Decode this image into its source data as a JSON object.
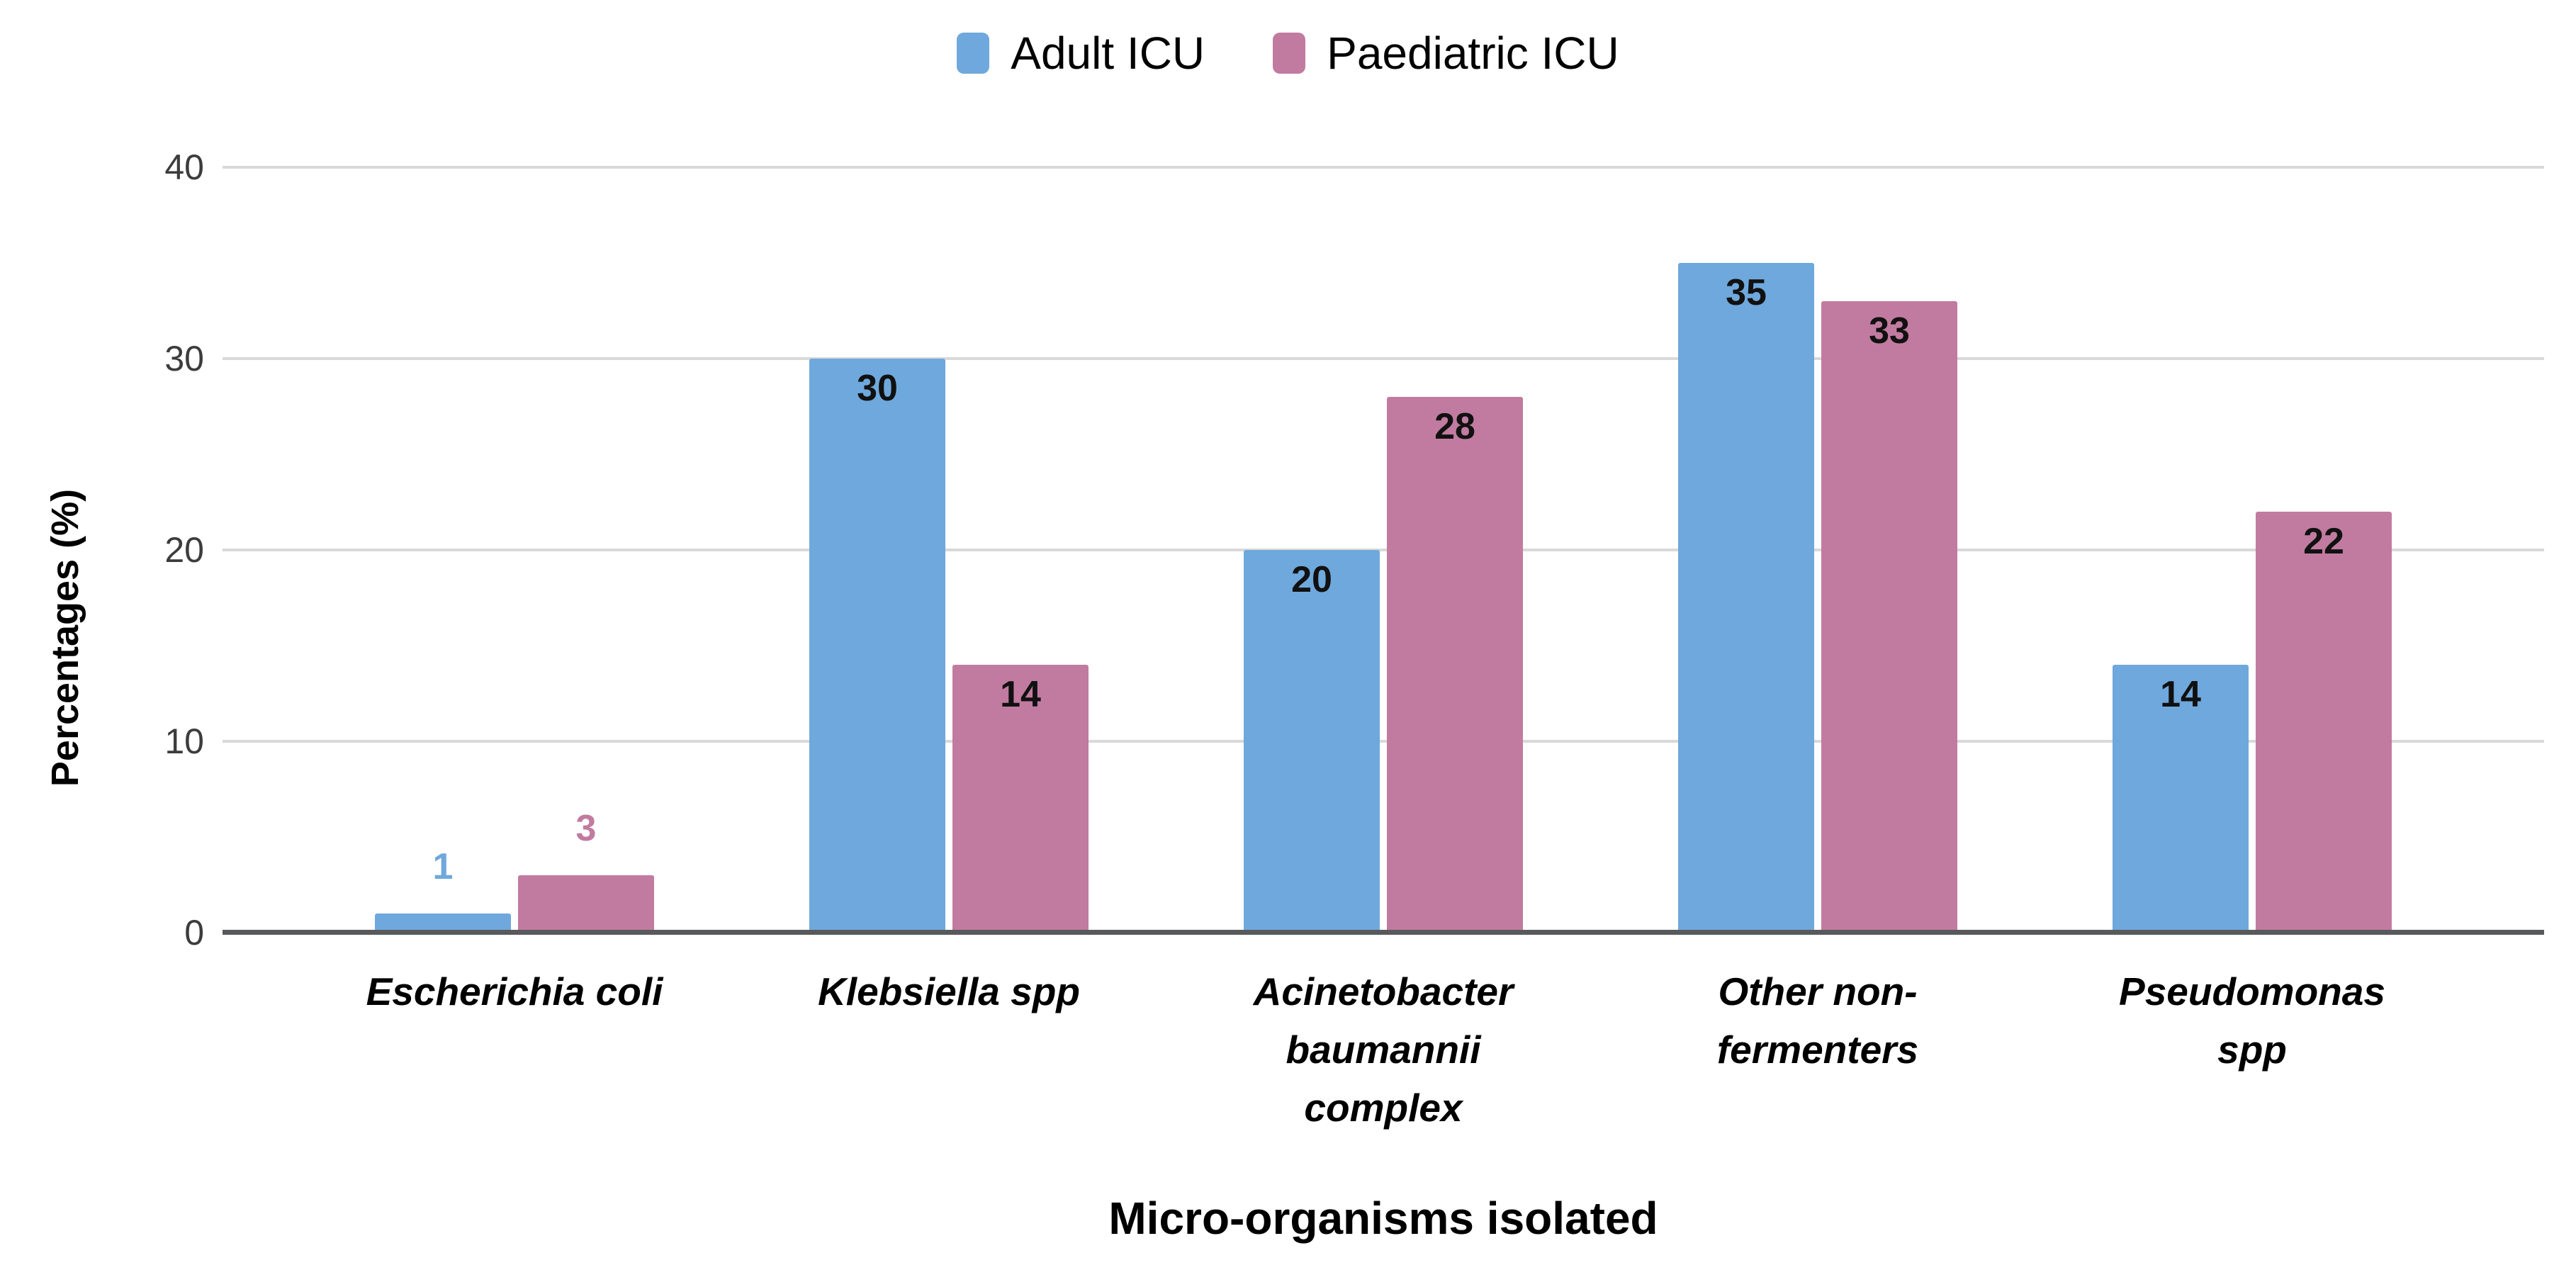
{
  "chart_data": {
    "type": "bar",
    "title": "",
    "xlabel": "Micro-organisms isolated",
    "ylabel": "Percentages (%)",
    "ylim": [
      0,
      40
    ],
    "yticks": [
      0,
      10,
      20,
      30,
      40
    ],
    "grid": "horizontal",
    "legend_position": "top-center",
    "categories": [
      "Escherichia coli",
      "Klebsiella spp",
      "Acinetobacter baumannii complex",
      "Other non-fermenters",
      "Pseudomonas spp"
    ],
    "category_label_lines": [
      [
        "Escherichia coli"
      ],
      [
        "Klebsiella spp"
      ],
      [
        "Acinetobacter",
        "baumannii",
        "complex"
      ],
      [
        "Other non-",
        "fermenters"
      ],
      [
        "Pseudomonas",
        "spp"
      ]
    ],
    "series": [
      {
        "name": "Adult ICU",
        "color": "#6FA8DC",
        "values": [
          1,
          30,
          20,
          35,
          14
        ]
      },
      {
        "name": "Paediatric ICU",
        "color": "#C27BA0",
        "values": [
          3,
          14,
          28,
          33,
          22
        ]
      }
    ],
    "value_label_rule": "values shown in bold black inside top of bar; small bars (Escherichia coli group) show value above bar in series color",
    "small_value_threshold": 5
  },
  "styles": {
    "grid_color": "#D9D9D9",
    "axis_line_color": "#58595B",
    "tick_label_color": "#3C3C3C",
    "value_label_color": "#111111",
    "background": "#FFFFFF"
  }
}
